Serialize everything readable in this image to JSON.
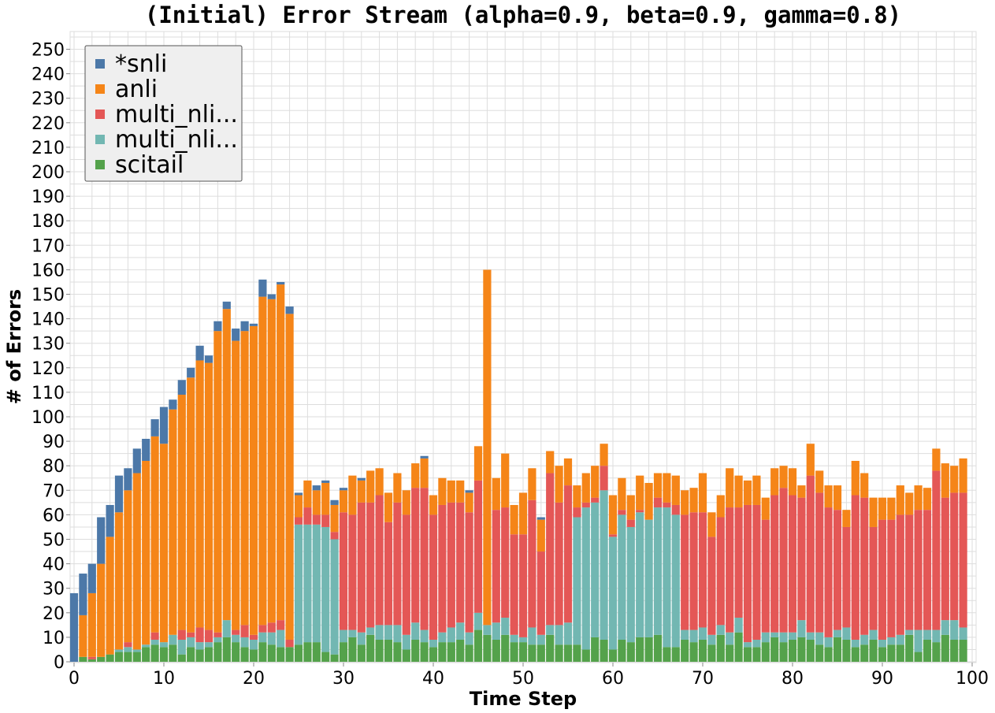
{
  "chart_data": {
    "type": "bar",
    "stacked": true,
    "title": "(Initial) Error Stream (alpha=0.9, beta=0.9, gamma=0.8)",
    "xlabel": "Time Step",
    "ylabel": "# of Errors",
    "xlim": [
      0,
      100
    ],
    "ylim": [
      0,
      255
    ],
    "xticks": [
      0,
      10,
      20,
      30,
      40,
      50,
      60,
      70,
      80,
      90,
      100
    ],
    "yticks": [
      0,
      10,
      20,
      30,
      40,
      50,
      60,
      70,
      80,
      90,
      100,
      110,
      120,
      130,
      140,
      150,
      160,
      170,
      180,
      190,
      200,
      210,
      220,
      230,
      240,
      250
    ],
    "grid": true,
    "legend_position": "top-left",
    "x": [
      0,
      1,
      2,
      3,
      4,
      5,
      6,
      7,
      8,
      9,
      10,
      11,
      12,
      13,
      14,
      15,
      16,
      17,
      18,
      19,
      20,
      21,
      22,
      23,
      24,
      25,
      26,
      27,
      28,
      29,
      30,
      31,
      32,
      33,
      34,
      35,
      36,
      37,
      38,
      39,
      40,
      41,
      42,
      43,
      44,
      45,
      46,
      47,
      48,
      49,
      50,
      51,
      52,
      53,
      54,
      55,
      56,
      57,
      58,
      59,
      60,
      61,
      62,
      63,
      64,
      65,
      66,
      67,
      68,
      69,
      70,
      71,
      72,
      73,
      74,
      75,
      76,
      77,
      78,
      79,
      80,
      81,
      82,
      83,
      84,
      85,
      86,
      87,
      88,
      89,
      90,
      91,
      92,
      93,
      94,
      95,
      96,
      97,
      98,
      99
    ],
    "series": [
      {
        "name": "scitail",
        "color": "#54a24b",
        "values": [
          0,
          2,
          1,
          2,
          3,
          4,
          4,
          4,
          6,
          7,
          6,
          7,
          3,
          6,
          5,
          6,
          8,
          10,
          8,
          6,
          5,
          8,
          7,
          6,
          6,
          7,
          8,
          8,
          4,
          3,
          8,
          10,
          7,
          11,
          9,
          9,
          8,
          5,
          9,
          8,
          6,
          8,
          8,
          9,
          7,
          13,
          11,
          9,
          11,
          8,
          8,
          7,
          7,
          11,
          7,
          7,
          7,
          5,
          10,
          9,
          5,
          9,
          8,
          10,
          10,
          11,
          6,
          6,
          9,
          8,
          9,
          7,
          11,
          7,
          12,
          6,
          6,
          8,
          10,
          8,
          9,
          10,
          9,
          7,
          6,
          10,
          9,
          6,
          7,
          9,
          6,
          7,
          7,
          11,
          4,
          9,
          8,
          11,
          9,
          9
        ]
      },
      {
        "name": "multi_nli...",
        "color": "#72b7b2",
        "values": [
          0,
          0,
          0,
          0,
          0,
          1,
          2,
          1,
          1,
          2,
          2,
          4,
          6,
          4,
          3,
          2,
          2,
          7,
          3,
          4,
          4,
          4,
          5,
          7,
          0,
          49,
          48,
          48,
          51,
          47,
          5,
          3,
          5,
          3,
          6,
          6,
          7,
          6,
          7,
          5,
          3,
          4,
          6,
          7,
          5,
          7,
          4,
          7,
          7,
          3,
          2,
          7,
          4,
          4,
          8,
          9,
          52,
          58,
          55,
          61,
          46,
          51,
          47,
          51,
          48,
          52,
          57,
          54,
          4,
          5,
          5,
          4,
          4,
          5,
          6,
          2,
          3,
          4,
          2,
          4,
          3,
          7,
          3,
          5,
          4,
          3,
          5,
          3,
          4,
          4,
          3,
          3,
          4,
          2,
          9,
          4,
          5,
          6,
          8,
          5
        ]
      },
      {
        "name": "multi_nli...",
        "color": "#e45756",
        "values": [
          0,
          0,
          1,
          0,
          0,
          0,
          2,
          0,
          0,
          3,
          0,
          0,
          4,
          2,
          6,
          5,
          2,
          0,
          2,
          5,
          2,
          3,
          4,
          4,
          3,
          3,
          7,
          4,
          5,
          3,
          48,
          47,
          53,
          51,
          53,
          42,
          50,
          49,
          55,
          58,
          51,
          52,
          51,
          49,
          49,
          54,
          0,
          46,
          45,
          41,
          42,
          52,
          34,
          62,
          50,
          56,
          4,
          2,
          2,
          10,
          1,
          2,
          3,
          1,
          0,
          4,
          2,
          4,
          47,
          48,
          47,
          40,
          44,
          51,
          45,
          56,
          55,
          46,
          56,
          59,
          56,
          50,
          64,
          57,
          53,
          49,
          41,
          59,
          56,
          42,
          49,
          48,
          49,
          47,
          49,
          49,
          65,
          50,
          52,
          55
        ]
      },
      {
        "name": "anli",
        "color": "#f58518",
        "values": [
          0,
          17,
          26,
          38,
          48,
          56,
          62,
          72,
          75,
          80,
          81,
          92,
          96,
          104,
          109,
          109,
          123,
          127,
          118,
          120,
          126,
          134,
          132,
          137,
          133,
          9,
          11,
          10,
          13,
          11,
          9,
          16,
          9,
          13,
          11,
          12,
          12,
          10,
          10,
          12,
          8,
          11,
          9,
          9,
          8,
          14,
          145,
          13,
          22,
          12,
          17,
          13,
          13,
          9,
          15,
          11,
          9,
          12,
          13,
          9,
          16,
          13,
          10,
          14,
          15,
          10,
          12,
          12,
          10,
          10,
          16,
          10,
          9,
          16,
          13,
          10,
          12,
          9,
          11,
          9,
          11,
          5,
          13,
          9,
          9,
          10,
          7,
          14,
          10,
          12,
          9,
          9,
          12,
          9,
          10,
          9,
          9,
          14,
          11,
          14
        ]
      },
      {
        "name": "*snli",
        "color": "#4c78a8",
        "values": [
          28,
          17,
          12,
          19,
          13,
          15,
          9,
          10,
          9,
          7,
          15,
          4,
          6,
          4,
          6,
          3,
          4,
          3,
          5,
          4,
          1,
          7,
          2,
          1,
          3,
          1,
          0,
          2,
          1,
          2,
          1,
          0,
          1,
          0,
          0,
          0,
          0,
          0,
          0,
          1,
          0,
          0,
          0,
          0,
          1,
          0,
          0,
          0,
          0,
          0,
          0,
          0,
          1,
          0,
          0,
          0,
          0,
          0,
          0,
          0,
          0,
          0,
          0,
          0,
          0,
          0,
          0,
          0,
          0,
          0,
          0,
          0,
          0,
          0,
          0,
          0,
          0,
          0,
          0,
          0,
          0,
          0,
          0,
          0,
          0,
          0,
          0,
          0,
          0,
          0,
          0,
          0,
          0,
          0,
          0,
          0,
          0,
          0,
          0,
          0
        ]
      }
    ],
    "legend_order": [
      "*snli",
      "anli",
      "multi_nli...",
      "multi_nli...",
      "scitail"
    ]
  }
}
